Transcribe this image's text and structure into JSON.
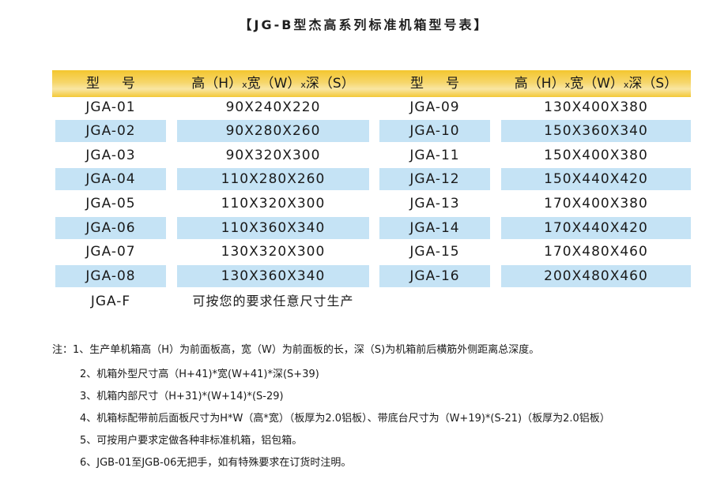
{
  "title": "【JG-B型杰高系列标准机箱型号表】",
  "header": {
    "model_label_char1": "型",
    "model_label_char2": "号",
    "dims_part1": "高（H）",
    "dims_x1": "x",
    "dims_part2": "宽（W）",
    "dims_x2": "x",
    "dims_part3": "深（S）"
  },
  "left_rows": [
    {
      "model": "JGA-01",
      "dims": "90X240X220"
    },
    {
      "model": "JGA-02",
      "dims": "90X280X260"
    },
    {
      "model": "JGA-03",
      "dims": "90X320X300"
    },
    {
      "model": "JGA-04",
      "dims": "110X280X260"
    },
    {
      "model": "JGA-05",
      "dims": "110X320X300"
    },
    {
      "model": "JGA-06",
      "dims": "110X360X340"
    },
    {
      "model": "JGA-07",
      "dims": "130X320X300"
    },
    {
      "model": "JGA-08",
      "dims": "130X360X340"
    }
  ],
  "right_rows": [
    {
      "model": "JGA-09",
      "dims": "130X400X380"
    },
    {
      "model": "JGA-10",
      "dims": "150X360X340"
    },
    {
      "model": "JGA-11",
      "dims": "150X400X380"
    },
    {
      "model": "JGA-12",
      "dims": "150X440X420"
    },
    {
      "model": "JGA-13",
      "dims": "170X400X380"
    },
    {
      "model": "JGA-14",
      "dims": "170X440X420"
    },
    {
      "model": "JGA-15",
      "dims": "170X480X460"
    },
    {
      "model": "JGA-16",
      "dims": "200X480X460"
    }
  ],
  "custom_row": {
    "model": "JGA-F",
    "text": "可按您的要求任意尺寸生产"
  },
  "notes": [
    "注：1、生产单机箱高（H）为前面板高，宽（W）为前面板的长，深（S)为机箱前后横筋外侧距离总深度。",
    "2、机箱外型尺寸高（H+41)*宽(W+41)*深(S+39)",
    "3、机箱内部尺寸（H+31)*(W+14)*(S-29)",
    "4、机箱标配带前后面板尺寸为H*W（高*宽）（板厚为2.0铝板）、带底台尺寸为（W+19)*(S-21)（板厚为2.0铝板）",
    "5、可按用户要求定做各种非标准机箱，铝包箱。",
    "6、JGB-01至JGB-06无把手，如有特殊要求在订货时注明。"
  ],
  "colors": {
    "header_band": "#f4c62e",
    "row_highlight": "#c5e3f5",
    "text": "#1a1a1a"
  }
}
